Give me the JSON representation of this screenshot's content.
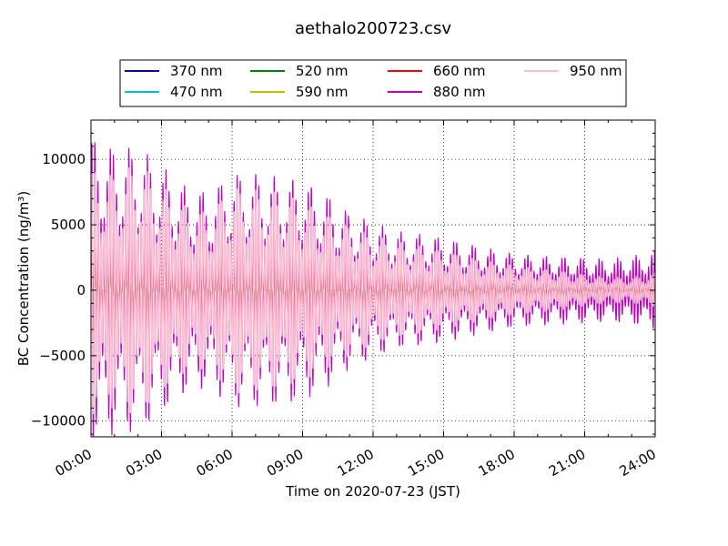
{
  "chart_data": {
    "type": "line",
    "title": "aethalo200723.csv",
    "xlabel": "Time on 2020-07-23 (JST)",
    "ylabel": "BC Concentration (ng/m³)",
    "xlim": [
      "00:00",
      "24:00"
    ],
    "ylim": [
      -11200,
      13000
    ],
    "x_ticks": [
      "00:00",
      "03:00",
      "06:00",
      "09:00",
      "12:00",
      "15:00",
      "18:00",
      "21:00",
      "24:00"
    ],
    "y_ticks": [
      -10000,
      -5000,
      0,
      5000,
      10000
    ],
    "grid": true,
    "legend": {
      "placement": "above plot",
      "columns": 4
    },
    "series": [
      {
        "name": "370 nm",
        "color": "#0000cc"
      },
      {
        "name": "470 nm",
        "color": "#00bfbf"
      },
      {
        "name": "520 nm",
        "color": "#008000"
      },
      {
        "name": "590 nm",
        "color": "#bfbf00"
      },
      {
        "name": "660 nm",
        "color": "#ff0000"
      },
      {
        "name": "880 nm",
        "color": "#bf00bf"
      },
      {
        "name": "950 nm",
        "color": "#ffc0cb"
      }
    ],
    "envelope_hours": [
      0,
      1,
      2,
      3,
      4,
      5,
      6,
      7,
      8,
      9,
      10,
      11,
      12,
      13,
      14,
      15,
      16,
      17,
      18,
      19,
      20,
      21,
      22,
      23,
      24
    ],
    "envelope_950nm_ng_m3": [
      9500,
      9000,
      9800,
      8000,
      6500,
      6000,
      8000,
      7800,
      7600,
      7000,
      6000,
      5000,
      4200,
      3700,
      3400,
      3000,
      2600,
      2200,
      1900,
      1700,
      1500,
      1200,
      1000,
      1000,
      1300
    ],
    "envelope_880nm_ng_m3": [
      12000,
      11000,
      11000,
      9500,
      8000,
      7500,
      9000,
      9000,
      8800,
      8500,
      7500,
      6000,
      5200,
      4500,
      4300,
      4000,
      3600,
      3200,
      2800,
      2700,
      2600,
      2500,
      2400,
      2600,
      3000
    ],
    "short_wavelength_amplitude_ng_m3": [
      3200,
      3300,
      3500,
      2500,
      2400,
      2200,
      2200,
      2300,
      2400,
      2400,
      2300,
      2000,
      1800,
      1700,
      1500,
      1400,
      1200,
      1100,
      900,
      800,
      700,
      900,
      700,
      700,
      700
    ]
  }
}
